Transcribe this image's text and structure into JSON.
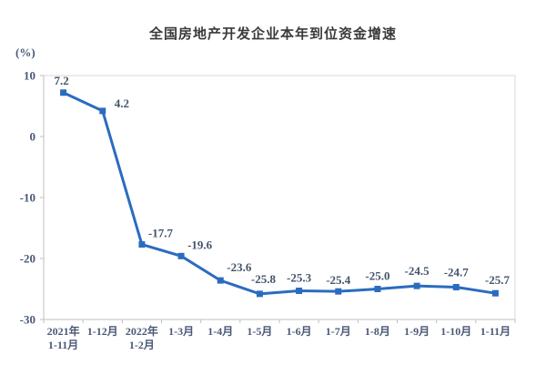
{
  "header": {
    "title": "全国房地产开发企业本年到位资金增速",
    "unit_label": "(%)"
  },
  "chart_data": {
    "type": "line",
    "title": "全国房地产开发企业本年到位资金增速",
    "ylabel": "(%)",
    "xlabel": "",
    "categories": [
      "2021年\n1-11月",
      "1-12月",
      "2022年\n1-2月",
      "1-3月",
      "1-4月",
      "1-5月",
      "1-6月",
      "1-7月",
      "1-8月",
      "1-9月",
      "1-10月",
      "1-11月"
    ],
    "values": [
      7.2,
      4.2,
      -17.7,
      -19.6,
      -23.6,
      -25.8,
      -25.3,
      -25.4,
      -25.0,
      -24.5,
      -24.7,
      -25.7
    ],
    "data_labels": [
      "7.2",
      "4.2",
      "-17.7",
      "-19.6",
      "-23.6",
      "-25.8",
      "-25.3",
      "-25.4",
      "-25.0",
      "-24.5",
      "-24.7",
      "-25.7"
    ],
    "ylim": [
      -30,
      10
    ],
    "yticks": [
      10,
      0,
      -10,
      -20,
      -30
    ],
    "grid": false,
    "legend": "none",
    "colors": {
      "line": "#2a6cc0",
      "marker": "#2a6cc0",
      "label_text": "#44546a",
      "tick_text": "#4a5878",
      "plot_border": "#d9d9d9",
      "axis_line": "#bfbfbf",
      "title_text": "#3a3a3a",
      "background": "#ffffff"
    }
  }
}
